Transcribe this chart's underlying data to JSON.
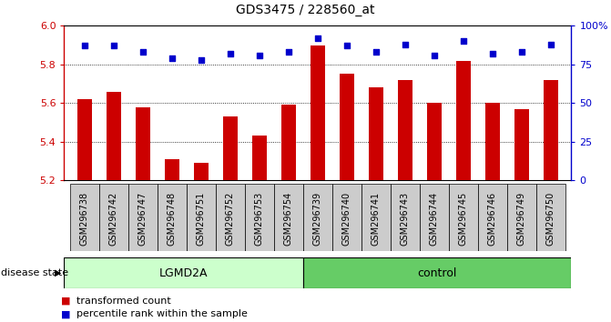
{
  "title": "GDS3475 / 228560_at",
  "samples": [
    "GSM296738",
    "GSM296742",
    "GSM296747",
    "GSM296748",
    "GSM296751",
    "GSM296752",
    "GSM296753",
    "GSM296754",
    "GSM296739",
    "GSM296740",
    "GSM296741",
    "GSM296743",
    "GSM296744",
    "GSM296745",
    "GSM296746",
    "GSM296749",
    "GSM296750"
  ],
  "bar_values": [
    5.62,
    5.66,
    5.58,
    5.31,
    5.29,
    5.53,
    5.43,
    5.59,
    5.9,
    5.75,
    5.68,
    5.72,
    5.6,
    5.82,
    5.6,
    5.57,
    5.72
  ],
  "dot_values": [
    87,
    87,
    83,
    79,
    78,
    82,
    81,
    83,
    92,
    87,
    83,
    88,
    81,
    90,
    82,
    83,
    88
  ],
  "ylim_left": [
    5.2,
    6.0
  ],
  "ylim_right": [
    0,
    100
  ],
  "yticks_left": [
    5.2,
    5.4,
    5.6,
    5.8,
    6.0
  ],
  "yticks_right": [
    0,
    25,
    50,
    75,
    100
  ],
  "ytick_labels_right": [
    "0",
    "25",
    "50",
    "75",
    "100%"
  ],
  "bar_color": "#cc0000",
  "dot_color": "#0000cc",
  "grid_values": [
    5.4,
    5.6,
    5.8
  ],
  "lgmd2a_samples": 8,
  "control_samples": 9,
  "lgmd2a_label": "LGMD2A",
  "control_label": "control",
  "disease_state_label": "disease state",
  "legend_bar_label": "transformed count",
  "legend_dot_label": "percentile rank within the sample",
  "lgmd2a_color": "#ccffcc",
  "control_color": "#66cc66",
  "label_area_color": "#cccccc",
  "background_color": "#ffffff"
}
